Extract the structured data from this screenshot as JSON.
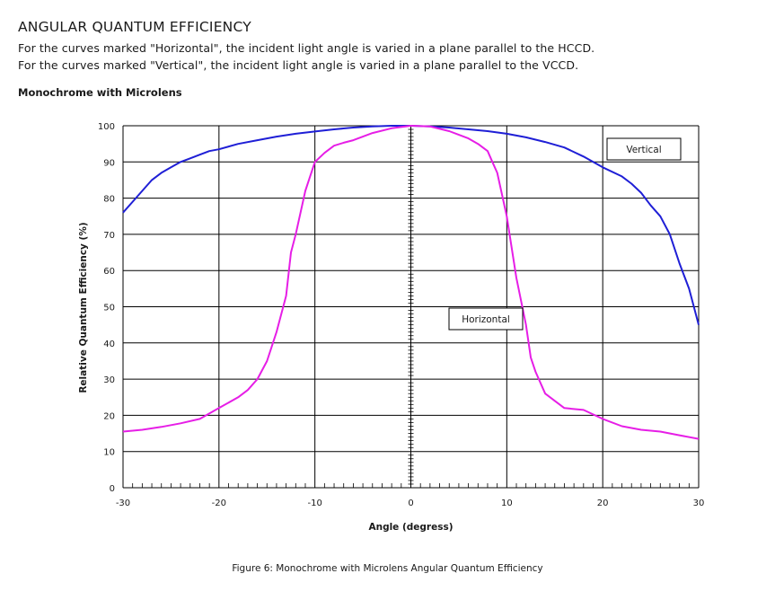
{
  "header": {
    "title": "ANGULAR QUANTUM EFFICIENCY",
    "line1": "For the curves marked \"Horizontal\", the incident light angle is varied in a plane parallel to the HCCD.",
    "line2": "For the curves marked \"Vertical\", the incident light angle is varied in a plane parallel to the VCCD."
  },
  "figure_caption": "Figure 6: Monochrome with Microlens Angular Quantum Efficiency",
  "chart_data": {
    "type": "line",
    "title": "Monochrome with Microlens",
    "xlabel": "Angle (degress)",
    "ylabel": "Relative Quantum Efficiency (%)",
    "xlim": [
      -30,
      30
    ],
    "ylim": [
      0,
      100
    ],
    "xticks": [
      "-30",
      "-20",
      "-10",
      "0",
      "10",
      "20",
      "30"
    ],
    "yticks": [
      "0",
      "10",
      "20",
      "30",
      "40",
      "50",
      "60",
      "70",
      "80",
      "90",
      "100"
    ],
    "grid": true,
    "series": [
      {
        "name": "Vertical",
        "color": "#1f1fd6",
        "x": [
          -30,
          -29,
          -28,
          -27,
          -26,
          -25,
          -24,
          -23,
          -22,
          -21,
          -20,
          -18,
          -16,
          -14,
          -12,
          -10,
          -8,
          -6,
          -4,
          -2,
          0,
          2,
          4,
          6,
          8,
          10,
          12,
          14,
          16,
          18,
          20,
          22,
          23,
          24,
          25,
          26,
          27,
          28,
          29,
          30
        ],
        "values": [
          76,
          79,
          82,
          85,
          87,
          88.5,
          90,
          91,
          92,
          93,
          93.5,
          95,
          96,
          97,
          97.8,
          98.4,
          99,
          99.5,
          99.8,
          100,
          100,
          99.8,
          99.5,
          99,
          98.5,
          97.8,
          96.8,
          95.5,
          94,
          91.5,
          88.5,
          86,
          84,
          81.5,
          78,
          75,
          70,
          62,
          55,
          45
        ]
      },
      {
        "name": "Horizontal",
        "color": "#e61ee6",
        "x": [
          -30,
          -28,
          -26,
          -24,
          -22,
          -20,
          -18,
          -17,
          -16,
          -15,
          -14,
          -13,
          -12.5,
          -12,
          -11,
          -10.5,
          -10,
          -9,
          -8,
          -7,
          -6,
          -4,
          -2,
          0,
          2,
          4,
          6,
          7,
          8,
          8.5,
          9,
          10,
          11,
          12,
          12.5,
          13,
          14,
          15,
          16,
          18,
          20,
          22,
          24,
          26,
          28,
          30
        ],
        "values": [
          15.5,
          16,
          16.8,
          17.8,
          19,
          22,
          25,
          27,
          30,
          35,
          43,
          53,
          65,
          70,
          82,
          86,
          90,
          92.5,
          94.5,
          95.3,
          96,
          98,
          99.3,
          100,
          99.8,
          98.5,
          96.5,
          95,
          93,
          90,
          87,
          75,
          58,
          45,
          36,
          32,
          26,
          24,
          22,
          21.5,
          19,
          17,
          16,
          15.5,
          14.5,
          13.5
        ]
      }
    ]
  }
}
